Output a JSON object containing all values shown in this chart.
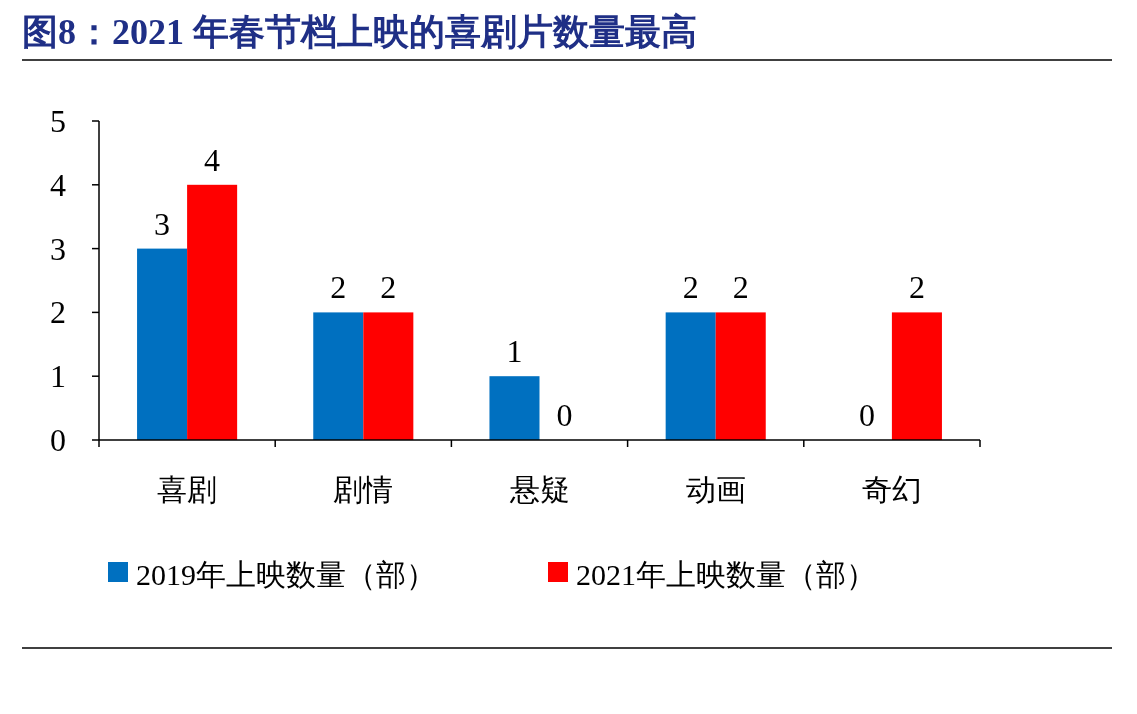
{
  "chart_data": {
    "type": "bar",
    "title": "图8：2021 年春节档上映的喜剧片数量最高",
    "categories": [
      "喜剧",
      "剧情",
      "悬疑",
      "动画",
      "奇幻"
    ],
    "series": [
      {
        "name": "2019年上映数量（部）",
        "color": "#0070c0",
        "values": [
          3,
          2,
          1,
          2,
          0
        ]
      },
      {
        "name": "2021年上映数量（部）",
        "color": "#ff0000",
        "values": [
          4,
          2,
          0,
          2,
          2
        ]
      }
    ],
    "ylim": [
      0,
      5
    ],
    "yticks": [
      0,
      1,
      2,
      3,
      4,
      5
    ],
    "data_labels": true,
    "legend": "bottom",
    "grid": false
  }
}
